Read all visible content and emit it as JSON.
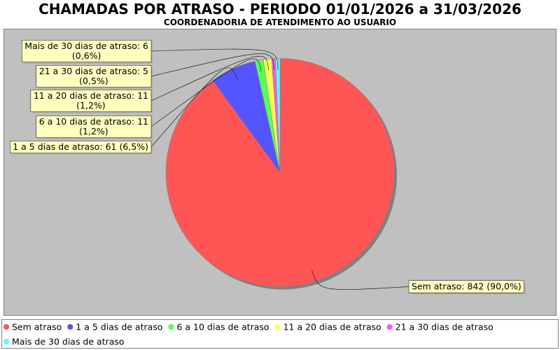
{
  "chart_data": {
    "type": "pie",
    "title": "CHAMADAS POR ATRASO - PERIODO 01/01/2026 a 31/03/2026",
    "subtitle": "COORDENADORIA DE ATENDIMENTO AO USUARIO",
    "legend_position": "bottom",
    "slices": [
      {
        "name": "Sem atraso",
        "value": 842,
        "percent": 90.0,
        "color": "#ff5555",
        "label_lines": [
          "Sem atraso: 842 (90,0%)"
        ]
      },
      {
        "name": "1 a 5 dias de atraso",
        "value": 61,
        "percent": 6.5,
        "color": "#5555ff",
        "label_lines": [
          "1 a 5 dias de atraso: 61 (6,5%)"
        ]
      },
      {
        "name": "6 a 10 dias de atraso",
        "value": 11,
        "percent": 1.2,
        "color": "#55ff55",
        "label_lines": [
          "6 a 10 dias de atraso: 11",
          "(1,2%)"
        ]
      },
      {
        "name": "11 a 20 dias de atraso",
        "value": 11,
        "percent": 1.2,
        "color": "#ffff55",
        "label_lines": [
          "11 a 20 dias de atraso: 11",
          "(1,2%)"
        ]
      },
      {
        "name": "21 a 30 dias de atraso",
        "value": 5,
        "percent": 0.5,
        "color": "#ff55ff",
        "label_lines": [
          "21 a 30 dias de atraso: 5",
          "(0,5%)"
        ]
      },
      {
        "name": "Mais de 30 dias de atraso",
        "value": 6,
        "percent": 0.6,
        "color": "#55ffff",
        "label_lines": [
          "Mais de 30 dias de atraso: 6",
          "(0,6%)"
        ]
      }
    ]
  },
  "colors": {
    "page_background": "#ffffff",
    "plot_background": "#c0c0c0",
    "plot_border": "#808080",
    "pie_shadow": "#808080",
    "label_background": "#ffffc0",
    "legend_border": "#808080"
  }
}
